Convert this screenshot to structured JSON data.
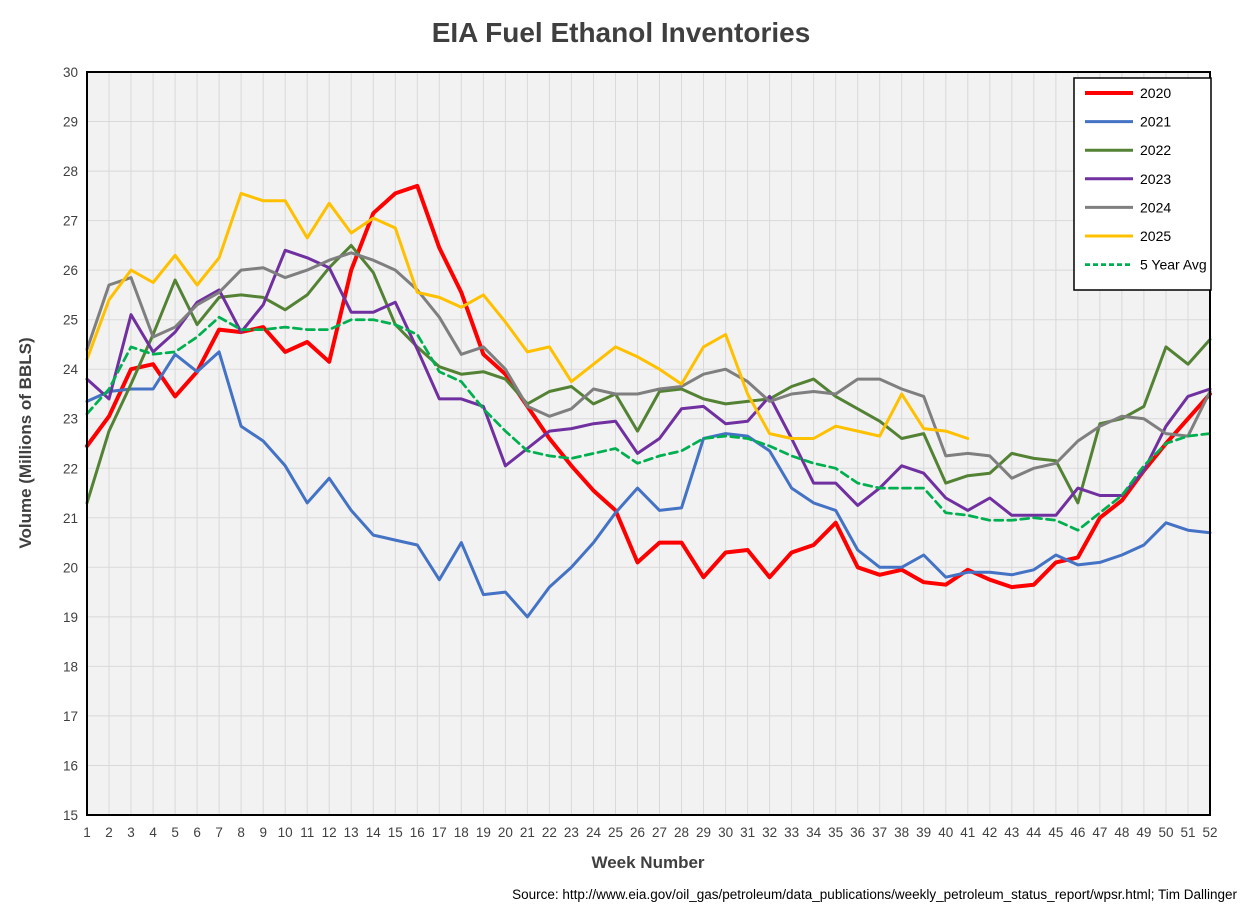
{
  "source_note": "Source: http://www.eia.gov/oil_gas/petroleum/data_publications/weekly_petroleum_status_report/wpsr.html; Tim Dallinger",
  "chart_data": {
    "type": "line",
    "title": "EIA Fuel Ethanol Inventories",
    "xlabel": "Week Number",
    "ylabel": "Volume (Millions of BBLS)",
    "xlim": [
      1,
      52
    ],
    "ylim": [
      15,
      30
    ],
    "grid": true,
    "legend_position": "top-right",
    "plot_bg": "#F2F2F2",
    "grid_color": "#D9D9D9",
    "border_color": "#000000",
    "text_color": "#404040",
    "title_color": "#3F3F3F",
    "x": [
      1,
      2,
      3,
      4,
      5,
      6,
      7,
      8,
      9,
      10,
      11,
      12,
      13,
      14,
      15,
      16,
      17,
      18,
      19,
      20,
      21,
      22,
      23,
      24,
      25,
      26,
      27,
      28,
      29,
      30,
      31,
      32,
      33,
      34,
      35,
      36,
      37,
      38,
      39,
      40,
      41,
      42,
      43,
      44,
      45,
      46,
      47,
      48,
      49,
      50,
      51,
      52
    ],
    "y_ticks": [
      15,
      16,
      17,
      18,
      19,
      20,
      21,
      22,
      23,
      24,
      25,
      26,
      27,
      28,
      29,
      30
    ],
    "series": [
      {
        "name": "2020",
        "color": "#FF0000",
        "width": 4,
        "dash": false,
        "values": [
          22.45,
          23.05,
          24.0,
          24.1,
          23.45,
          23.95,
          24.8,
          24.75,
          24.85,
          24.35,
          24.55,
          24.15,
          26.0,
          27.15,
          27.55,
          27.7,
          26.45,
          25.55,
          24.3,
          23.9,
          23.25,
          22.6,
          22.05,
          21.55,
          21.15,
          20.1,
          20.5,
          20.5,
          19.8,
          20.3,
          20.35,
          19.8,
          20.3,
          20.45,
          20.9,
          20.0,
          19.85,
          19.95,
          19.7,
          19.65,
          19.95,
          19.75,
          19.6,
          19.65,
          20.1,
          20.2,
          21.0,
          21.35,
          21.95,
          22.5,
          23.0,
          23.5
        ]
      },
      {
        "name": "2021",
        "color": "#4472C4",
        "width": 3,
        "dash": false,
        "values": [
          23.35,
          23.55,
          23.6,
          23.6,
          24.3,
          23.95,
          24.35,
          22.85,
          22.55,
          22.05,
          21.3,
          21.8,
          21.15,
          20.65,
          20.55,
          20.45,
          19.75,
          20.5,
          19.45,
          19.5,
          19.0,
          19.6,
          20.0,
          20.5,
          21.1,
          21.6,
          21.15,
          21.2,
          22.6,
          22.7,
          22.65,
          22.35,
          21.6,
          21.3,
          21.15,
          20.35,
          20.0,
          20.0,
          20.25,
          19.8,
          19.9,
          19.9,
          19.85,
          19.95,
          20.25,
          20.05,
          20.1,
          20.25,
          20.45,
          20.9,
          20.75,
          20.7
        ]
      },
      {
        "name": "2022",
        "color": "#548235",
        "width": 3,
        "dash": false,
        "values": [
          21.3,
          22.75,
          23.7,
          24.7,
          25.8,
          24.9,
          25.45,
          25.5,
          25.45,
          25.2,
          25.5,
          26.05,
          26.5,
          25.95,
          24.9,
          24.45,
          24.05,
          23.9,
          23.95,
          23.8,
          23.3,
          23.55,
          23.65,
          23.3,
          23.5,
          22.75,
          23.55,
          23.6,
          23.4,
          23.3,
          23.35,
          23.4,
          23.65,
          23.8,
          23.45,
          23.2,
          22.95,
          22.6,
          22.7,
          21.7,
          21.85,
          21.9,
          22.3,
          22.2,
          22.15,
          21.3,
          22.9,
          23.0,
          23.25,
          24.45,
          24.1,
          24.6
        ]
      },
      {
        "name": "2023",
        "color": "#7030A0",
        "width": 3,
        "dash": false,
        "values": [
          23.8,
          23.4,
          25.1,
          24.35,
          24.75,
          25.35,
          25.6,
          24.75,
          25.3,
          26.4,
          26.25,
          26.05,
          25.15,
          25.15,
          25.35,
          24.4,
          23.4,
          23.4,
          23.25,
          22.05,
          22.4,
          22.75,
          22.8,
          22.9,
          22.95,
          22.3,
          22.6,
          23.2,
          23.25,
          22.9,
          22.95,
          23.45,
          22.6,
          21.7,
          21.7,
          21.25,
          21.6,
          22.05,
          21.9,
          21.4,
          21.15,
          21.4,
          21.05,
          21.05,
          21.05,
          21.6,
          21.45,
          21.45,
          21.95,
          22.85,
          23.45,
          23.6
        ]
      },
      {
        "name": "2024",
        "color": "#7F7F7F",
        "width": 3,
        "dash": false,
        "values": [
          24.4,
          25.7,
          25.85,
          24.65,
          24.85,
          25.3,
          25.55,
          26.0,
          26.05,
          25.85,
          26.0,
          26.2,
          26.35,
          26.2,
          26.0,
          25.6,
          25.05,
          24.3,
          24.45,
          24.0,
          23.25,
          23.05,
          23.2,
          23.6,
          23.5,
          23.5,
          23.6,
          23.65,
          23.9,
          24.0,
          23.75,
          23.35,
          23.5,
          23.55,
          23.5,
          23.8,
          23.8,
          23.6,
          23.45,
          22.25,
          22.3,
          22.25,
          21.8,
          22.0,
          22.1,
          22.55,
          22.85,
          23.05,
          23.0,
          22.7,
          22.65,
          23.55
        ]
      },
      {
        "name": "2025",
        "color": "#FFC000",
        "width": 3,
        "dash": false,
        "values": [
          24.2,
          25.4,
          26.0,
          25.75,
          26.3,
          25.7,
          26.25,
          27.55,
          27.4,
          27.4,
          26.65,
          27.35,
          26.75,
          27.05,
          26.85,
          25.55,
          25.45,
          25.25,
          25.5,
          24.95,
          24.35,
          24.45,
          23.75,
          24.1,
          24.45,
          24.25,
          24.0,
          23.7,
          24.45,
          24.7,
          23.5,
          22.7,
          22.6,
          22.6,
          22.85,
          22.75,
          22.65,
          23.5,
          22.8,
          22.75,
          22.6,
          null,
          null,
          null,
          null,
          null,
          null,
          null,
          null,
          null,
          null,
          null
        ]
      },
      {
        "name": "5 Year Avg",
        "color": "#00B050",
        "width": 2.75,
        "dash": true,
        "values": [
          23.1,
          23.6,
          24.45,
          24.3,
          24.35,
          24.65,
          25.05,
          24.8,
          24.8,
          24.85,
          24.8,
          24.8,
          25.0,
          25.0,
          24.9,
          24.7,
          23.95,
          23.75,
          23.2,
          22.75,
          22.35,
          22.25,
          22.2,
          22.3,
          22.4,
          22.1,
          22.25,
          22.35,
          22.6,
          22.65,
          22.6,
          22.45,
          22.25,
          22.1,
          22.0,
          21.7,
          21.6,
          21.6,
          21.6,
          21.1,
          21.05,
          20.95,
          20.95,
          21.0,
          20.95,
          20.75,
          21.1,
          21.45,
          22.05,
          22.5,
          22.65,
          22.7
        ]
      }
    ]
  }
}
